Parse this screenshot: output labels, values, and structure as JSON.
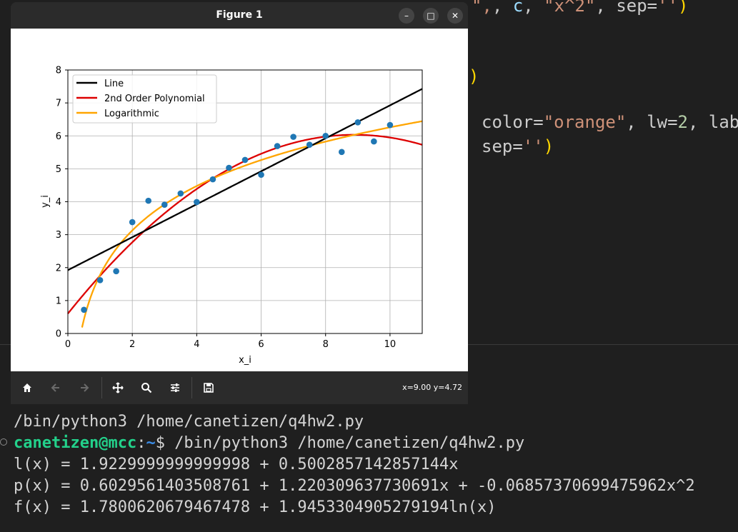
{
  "editor": {
    "line1": {
      "c": "c",
      "sep1": ", ",
      "comma": ", ",
      "x2": "\"x^2\"",
      "sep_kw": ", sep=",
      "sep_val": "''",
      "close": ")",
      "lead_str": "\",",
      "lead_quote": " \""
    },
    "line2": {
      "close": ")"
    },
    "line3": {
      "kw": "color=",
      "color_val": "\"orange\"",
      "lw_kw": ", lw=",
      "lw_val": "2",
      "lab": ", lab"
    },
    "line4": {
      "kw": "sep=",
      "val": "''",
      "close": ")"
    }
  },
  "window": {
    "title": "Figure 1",
    "minimize_label": "–",
    "maximize_label": "□",
    "close_label": "✕"
  },
  "toolbar": {
    "icons": [
      "home-icon",
      "back-arrow-icon",
      "forward-arrow-icon",
      "pan-icon",
      "zoom-icon",
      "configure-subplots-icon",
      "save-icon"
    ],
    "coords": "x=9.00 y=4.72"
  },
  "chart_data": {
    "type": "scatter",
    "xlabel": "x_i",
    "ylabel": "y_i",
    "xlim": [
      0,
      11
    ],
    "ylim": [
      0,
      8
    ],
    "xticks": [
      "0",
      "2",
      "4",
      "6",
      "8",
      "10"
    ],
    "yticks": [
      "0",
      "1",
      "2",
      "3",
      "4",
      "5",
      "6",
      "7",
      "8"
    ],
    "grid": true,
    "legend_position": "upper-left",
    "points": {
      "x": [
        0.5,
        1.0,
        1.5,
        2.0,
        2.5,
        3.0,
        3.5,
        4.0,
        4.5,
        5.0,
        5.5,
        6.0,
        6.5,
        7.0,
        7.5,
        8.0,
        8.5,
        9.0,
        9.5,
        10.0
      ],
      "y": [
        0.72,
        1.62,
        1.89,
        3.38,
        4.03,
        3.91,
        4.25,
        3.99,
        4.68,
        5.03,
        5.27,
        4.82,
        5.69,
        5.97,
        5.73,
        6.0,
        5.51,
        6.41,
        5.83,
        6.33
      ],
      "color": "#1f77b4"
    },
    "series": [
      {
        "name": "Line",
        "color": "#000000",
        "kind": "linear",
        "a": 1.9229999999999998,
        "b": 0.5002857142857144
      },
      {
        "name": "2nd Order Polynomial",
        "color": "#dd0000",
        "kind": "poly2",
        "a": 0.6029561403508761,
        "b": 1.220309637730691,
        "c": -0.0685737069947596
      },
      {
        "name": "Logarithmic",
        "color": "#ffa500",
        "kind": "log",
        "a": 1.7800620679467478,
        "b": 1.9453304905279194
      }
    ]
  },
  "terminal": {
    "lines": [
      "/bin/python3 /home/canetizen/q4hw2.py",
      "",
      "l(x) = 1.9229999999999998 + 0.5002857142857144x",
      "p(x) = 0.6029561403508761 + 1.220309637730691x + -0.06857370699475962x^2",
      "f(x) = 1.7800620679467478 + 1.9453304905279194ln(x)"
    ],
    "prompt": {
      "user_host": "canetizen@mcc",
      "colon": ":",
      "path": "~",
      "dollar": "$ ",
      "command": "/bin/python3 /home/canetizen/q4hw2.py"
    }
  }
}
